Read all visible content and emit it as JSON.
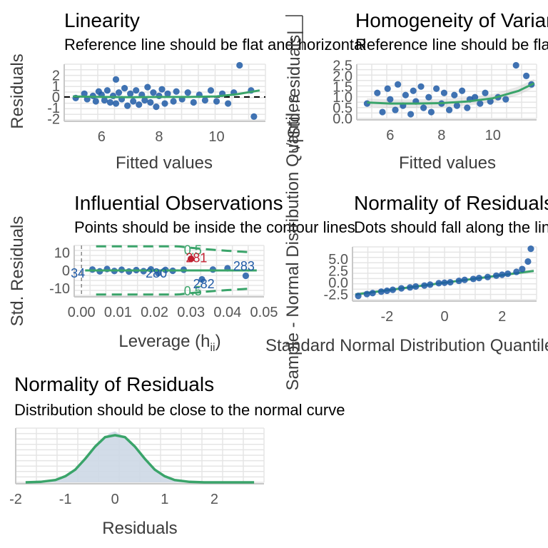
{
  "colors": {
    "points": "#1f5aa6",
    "fit": "#3aa46a",
    "grid": "#e5e5e5",
    "influential": "#c21f2f",
    "refline": "#000000",
    "density_fill": "#cdd8e6"
  },
  "chart_data": [
    {
      "type": "scatter",
      "panel": "linearity",
      "title": "Linearity",
      "subtitle": "Reference line should be flat and horizontal",
      "xlabel": "Fitted values",
      "ylabel": "Residuals",
      "x_ticks": [
        "6",
        "8",
        "10"
      ],
      "y_ticks": [
        "-2",
        "-1",
        "0",
        "1",
        "2"
      ],
      "xlim": [
        4.7,
        11.7
      ],
      "ylim": [
        -2.1,
        3.0
      ],
      "reference_line": 0,
      "points": [
        [
          5.1,
          -0.1
        ],
        [
          5.4,
          0.3
        ],
        [
          5.5,
          -0.2
        ],
        [
          5.7,
          0.1
        ],
        [
          5.8,
          -0.4
        ],
        [
          5.9,
          0.5
        ],
        [
          6.0,
          0.2
        ],
        [
          6.1,
          -0.3
        ],
        [
          6.2,
          0.6
        ],
        [
          6.3,
          -0.5
        ],
        [
          6.4,
          0.1
        ],
        [
          6.5,
          1.6
        ],
        [
          6.5,
          -0.6
        ],
        [
          6.6,
          0.4
        ],
        [
          6.7,
          -0.2
        ],
        [
          6.8,
          0.8
        ],
        [
          6.9,
          -0.8
        ],
        [
          7.0,
          0.3
        ],
        [
          7.1,
          -0.4
        ],
        [
          7.2,
          0.6
        ],
        [
          7.3,
          -0.7
        ],
        [
          7.4,
          0.2
        ],
        [
          7.5,
          -0.3
        ],
        [
          7.6,
          0.9
        ],
        [
          7.7,
          -0.5
        ],
        [
          7.8,
          0.4
        ],
        [
          7.9,
          -0.9
        ],
        [
          8.0,
          0.1
        ],
        [
          8.1,
          0.7
        ],
        [
          8.2,
          -0.6
        ],
        [
          8.3,
          0.3
        ],
        [
          8.5,
          -0.4
        ],
        [
          8.6,
          0.5
        ],
        [
          8.8,
          -0.2
        ],
        [
          9.0,
          0.4
        ],
        [
          9.2,
          -0.5
        ],
        [
          9.4,
          0.2
        ],
        [
          9.6,
          -0.3
        ],
        [
          9.8,
          0.6
        ],
        [
          10.0,
          -0.4
        ],
        [
          10.2,
          0.3
        ],
        [
          10.4,
          -0.6
        ],
        [
          10.6,
          0.4
        ],
        [
          10.8,
          2.9
        ],
        [
          11.2,
          0.6
        ],
        [
          11.3,
          -1.8
        ]
      ],
      "fit_curve": [
        [
          5.0,
          0.05
        ],
        [
          6.0,
          0.0
        ],
        [
          7.0,
          -0.02
        ],
        [
          8.0,
          0.0
        ],
        [
          9.0,
          0.0
        ],
        [
          10.0,
          0.05
        ],
        [
          10.7,
          0.25
        ],
        [
          11.5,
          0.6
        ]
      ]
    },
    {
      "type": "scatter",
      "panel": "homogeneity",
      "title": "Homogeneity of Variance",
      "subtitle": "Reference line should be flat and horizontal",
      "xlabel": "Fitted values",
      "ylabel": "√|Std. residuals|",
      "x_ticks": [
        "6",
        "8",
        "10"
      ],
      "y_ticks": [
        "0.0",
        "0.5",
        "1.0",
        "1.5",
        "2.0",
        "2.5"
      ],
      "xlim": [
        4.7,
        11.7
      ],
      "ylim": [
        0.0,
        2.55
      ],
      "points": [
        [
          5.1,
          0.7
        ],
        [
          5.5,
          1.2
        ],
        [
          5.7,
          0.3
        ],
        [
          5.9,
          1.4
        ],
        [
          6.0,
          0.9
        ],
        [
          6.2,
          0.4
        ],
        [
          6.3,
          1.6
        ],
        [
          6.5,
          0.6
        ],
        [
          6.6,
          1.1
        ],
        [
          6.8,
          0.2
        ],
        [
          6.9,
          1.3
        ],
        [
          7.0,
          0.8
        ],
        [
          7.2,
          1.5
        ],
        [
          7.3,
          0.5
        ],
        [
          7.5,
          1.0
        ],
        [
          7.6,
          0.3
        ],
        [
          7.8,
          1.4
        ],
        [
          8.0,
          0.7
        ],
        [
          8.1,
          1.2
        ],
        [
          8.3,
          0.4
        ],
        [
          8.5,
          1.1
        ],
        [
          8.6,
          0.6
        ],
        [
          8.8,
          1.3
        ],
        [
          9.0,
          0.5
        ],
        [
          9.1,
          0.9
        ],
        [
          9.3,
          1.0
        ],
        [
          9.5,
          0.7
        ],
        [
          9.7,
          1.2
        ],
        [
          9.9,
          0.8
        ],
        [
          10.2,
          1.0
        ],
        [
          10.5,
          0.9
        ],
        [
          10.9,
          2.5
        ],
        [
          11.3,
          2.0
        ],
        [
          11.5,
          1.6
        ]
      ],
      "fit_curve": [
        [
          5.1,
          0.75
        ],
        [
          6.0,
          0.7
        ],
        [
          7.0,
          0.7
        ],
        [
          8.0,
          0.72
        ],
        [
          9.0,
          0.8
        ],
        [
          10.0,
          0.95
        ],
        [
          11.0,
          1.3
        ],
        [
          11.6,
          1.65
        ]
      ]
    },
    {
      "type": "scatter",
      "panel": "influential",
      "title": "Influential Observations",
      "subtitle": "Points should be inside the contour lines",
      "xlabel": "Leverage (h",
      "xlabel_sub": "ii",
      "xlabel_end": ")",
      "ylabel": "Std. Residuals",
      "x_ticks": [
        "0.00",
        "0.01",
        "0.02",
        "0.03",
        "0.04",
        "0.05"
      ],
      "y_ticks": [
        "-10",
        "0",
        "10"
      ],
      "xlim": [
        -0.002,
        0.05
      ],
      "ylim": [
        -14,
        14
      ],
      "contour_labels": [
        {
          "text": "0.5",
          "x": 0.0305,
          "y": 11.5
        },
        {
          "text": "0.5",
          "x": 0.0305,
          "y": -11.5
        }
      ],
      "labels": [
        {
          "text": "281",
          "x": 0.0315,
          "y": 7,
          "color": "#c21f2f"
        },
        {
          "text": "34",
          "x": -0.001,
          "y": -1.5,
          "color": "#1f5aa6"
        },
        {
          "text": "280",
          "x": 0.0205,
          "y": -1.5,
          "color": "#1f5aa6"
        },
        {
          "text": "283",
          "x": 0.0445,
          "y": 2.5,
          "color": "#1f5aa6"
        },
        {
          "text": "282",
          "x": 0.0335,
          "y": -7.5,
          "color": "#1f5aa6"
        }
      ],
      "points": [
        [
          0.003,
          0.5
        ],
        [
          0.005,
          -0.5
        ],
        [
          0.007,
          0.8
        ],
        [
          0.009,
          -0.3
        ],
        [
          0.011,
          0.4
        ],
        [
          0.013,
          -0.6
        ],
        [
          0.015,
          0.2
        ],
        [
          0.017,
          -0.4
        ],
        [
          0.019,
          0.6
        ],
        [
          0.021,
          -1.5
        ],
        [
          0.023,
          0.3
        ],
        [
          0.025,
          -0.2
        ],
        [
          0.028,
          0.4
        ],
        [
          0.03,
          6.5
        ],
        [
          0.033,
          -5
        ],
        [
          0.036,
          0.5
        ],
        [
          0.04,
          1.2
        ],
        [
          0.045,
          -3
        ]
      ],
      "fit_curve": [
        [
          0.001,
          0.0
        ],
        [
          0.01,
          0.0
        ],
        [
          0.02,
          0.0
        ],
        [
          0.03,
          0.0
        ],
        [
          0.04,
          0.0
        ],
        [
          0.048,
          0.0
        ]
      ]
    },
    {
      "type": "scatter",
      "panel": "qq",
      "title": "Normality of Residuals",
      "subtitle": "Dots should fall along the line",
      "xlabel": "Standard Normal Distribution Quantiles",
      "ylabel": "Sample - Normal Distribution Quantiles",
      "x_ticks": [
        "-2",
        "0",
        "2"
      ],
      "y_ticks": [
        "-2.5",
        "0.0",
        "2.5",
        "5.0"
      ],
      "xlim": [
        -3.2,
        3.2
      ],
      "ylim": [
        -3.6,
        7.6
      ],
      "points": [
        [
          -3.0,
          -2.8
        ],
        [
          -2.7,
          -2.4
        ],
        [
          -2.5,
          -2.2
        ],
        [
          -2.2,
          -1.9
        ],
        [
          -2.0,
          -1.7
        ],
        [
          -1.8,
          -1.5
        ],
        [
          -1.5,
          -1.2
        ],
        [
          -1.2,
          -1.0
        ],
        [
          -1.0,
          -0.8
        ],
        [
          -0.7,
          -0.6
        ],
        [
          -0.5,
          -0.4
        ],
        [
          -0.2,
          -0.1
        ],
        [
          0.0,
          0.0
        ],
        [
          0.2,
          0.1
        ],
        [
          0.5,
          0.4
        ],
        [
          0.7,
          0.6
        ],
        [
          1.0,
          0.8
        ],
        [
          1.2,
          1.0
        ],
        [
          1.5,
          1.2
        ],
        [
          1.8,
          1.5
        ],
        [
          2.0,
          1.7
        ],
        [
          2.2,
          1.9
        ],
        [
          2.5,
          2.3
        ],
        [
          2.7,
          2.9
        ],
        [
          2.9,
          4.5
        ],
        [
          3.0,
          7.2
        ]
      ],
      "fit_curve": [
        [
          -3.1,
          -2.5
        ],
        [
          3.1,
          2.5
        ]
      ]
    },
    {
      "type": "area",
      "panel": "density",
      "title": "Normality of Residuals",
      "subtitle": "Distribution should be close to the normal curve",
      "xlabel": "Residuals",
      "ylabel": "",
      "x_ticks": [
        "-2",
        "-1",
        "0",
        "1",
        "2"
      ],
      "xlim": [
        -2.0,
        3.0
      ],
      "ylim": [
        0,
        1.15
      ],
      "density_curve": [
        [
          -2.0,
          0.0
        ],
        [
          -1.5,
          0.005
        ],
        [
          -1.2,
          0.05
        ],
        [
          -1.0,
          0.1
        ],
        [
          -0.8,
          0.25
        ],
        [
          -0.6,
          0.5
        ],
        [
          -0.4,
          0.75
        ],
        [
          -0.2,
          0.95
        ],
        [
          -0.1,
          1.05
        ],
        [
          0.0,
          1.08
        ],
        [
          0.1,
          1.02
        ],
        [
          0.2,
          0.95
        ],
        [
          0.4,
          0.75
        ],
        [
          0.6,
          0.5
        ],
        [
          0.8,
          0.25
        ],
        [
          1.0,
          0.1
        ],
        [
          1.2,
          0.05
        ],
        [
          1.5,
          0.01
        ],
        [
          2.0,
          0.0
        ],
        [
          2.5,
          0.0
        ],
        [
          3.0,
          0.0
        ]
      ],
      "normal_curve": [
        [
          -1.8,
          0.0
        ],
        [
          -1.5,
          0.01
        ],
        [
          -1.2,
          0.05
        ],
        [
          -1.0,
          0.13
        ],
        [
          -0.8,
          0.27
        ],
        [
          -0.6,
          0.5
        ],
        [
          -0.4,
          0.76
        ],
        [
          -0.2,
          0.96
        ],
        [
          0.0,
          1.0
        ],
        [
          0.2,
          0.96
        ],
        [
          0.4,
          0.76
        ],
        [
          0.6,
          0.5
        ],
        [
          0.8,
          0.27
        ],
        [
          1.0,
          0.13
        ],
        [
          1.2,
          0.05
        ],
        [
          1.5,
          0.01
        ],
        [
          1.8,
          0.0
        ],
        [
          2.1,
          0.0
        ],
        [
          2.8,
          0.0
        ]
      ]
    }
  ]
}
